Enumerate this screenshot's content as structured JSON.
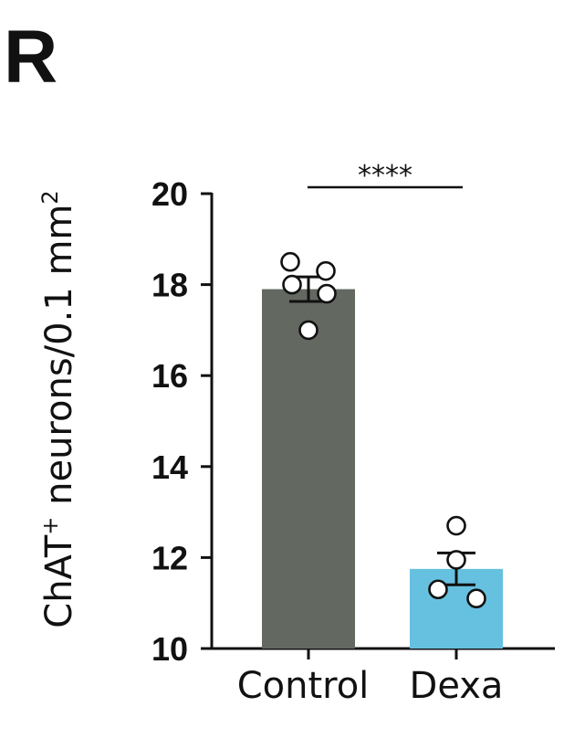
{
  "panel_label": "R",
  "chart_data": {
    "type": "bar",
    "ylabel": {
      "main": "ChAT",
      "sup": "+",
      "rest": " neurons/0.1 mm",
      "sup2": "2"
    },
    "ylim": [
      10,
      20
    ],
    "yticks": [
      "10",
      "12",
      "14",
      "16",
      "18",
      "20"
    ],
    "categories": [
      "Control",
      "Dexa"
    ],
    "values": [
      17.9,
      11.75
    ],
    "sem": [
      0.27,
      0.35
    ],
    "colors": [
      "#636861",
      "#66c1e0"
    ],
    "points": [
      [
        18.5,
        18.3,
        18.0,
        17.8,
        17.0
      ],
      [
        12.7,
        11.95,
        11.3,
        11.1
      ]
    ],
    "significance": "****"
  }
}
